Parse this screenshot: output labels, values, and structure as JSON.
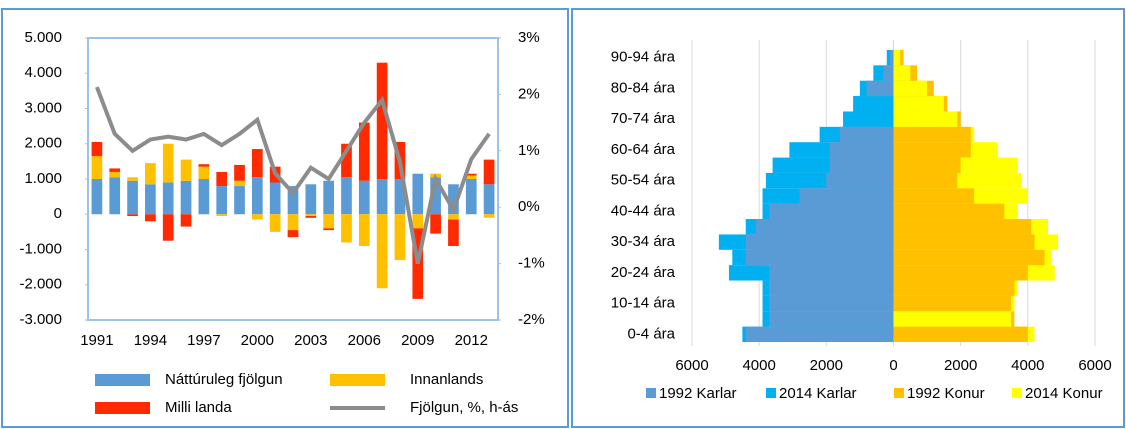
{
  "chart_data": [
    {
      "type": "bar",
      "stacked": true,
      "categories": [
        "1991",
        null,
        null,
        "1994",
        null,
        null,
        "1997",
        null,
        null,
        "2000",
        null,
        null,
        "2003",
        null,
        null,
        "2006",
        null,
        null,
        "2009",
        null,
        null,
        "2012",
        null
      ],
      "series": [
        {
          "name": "Náttúruleg fjölgun",
          "color": "#5b9bd5",
          "values": [
            1000,
            1050,
            950,
            850,
            900,
            950,
            1000,
            800,
            800,
            1050,
            900,
            800,
            850,
            950,
            1050,
            950,
            1000,
            1000,
            1150,
            1050,
            850,
            1000,
            850
          ]
        },
        {
          "name": "Innanlands",
          "color": "#ffc000",
          "values": [
            650,
            150,
            100,
            600,
            1100,
            600,
            350,
            -50,
            150,
            -150,
            -500,
            -450,
            -50,
            -400,
            -800,
            -900,
            -2100,
            -1300,
            -400,
            100,
            -150,
            100,
            -100
          ]
        },
        {
          "name": "Milli landa",
          "color": "#ff2a00",
          "values": [
            400,
            100,
            -50,
            -200,
            -750,
            -350,
            70,
            400,
            450,
            800,
            450,
            -200,
            -50,
            -50,
            950,
            1650,
            3300,
            1050,
            -2000,
            -550,
            -750,
            50,
            700
          ]
        },
        {
          "name": "Fjölgun, %, h-ás",
          "color": "#8c8c8c",
          "type": "line",
          "axis": "y2",
          "values": [
            2.13,
            1.3,
            1.0,
            1.2,
            1.25,
            1.2,
            1.3,
            1.1,
            1.3,
            1.55,
            0.6,
            0.25,
            0.7,
            0.5,
            1.0,
            1.5,
            1.9,
            0.8,
            -1.0,
            0.5,
            -0.05,
            0.85,
            1.3
          ]
        }
      ],
      "ylim": [
        -3000,
        5000
      ],
      "yticks": [
        {
          "value": -3000,
          "label": "-3.000"
        },
        {
          "value": -2000,
          "label": "-2.000"
        },
        {
          "value": -1000,
          "label": "-1.000"
        },
        0,
        {
          "value": 1000,
          "label": "1.000"
        },
        {
          "value": 2000,
          "label": "2.000"
        },
        {
          "value": 3000,
          "label": "3.000"
        },
        {
          "value": 4000,
          "label": "4.000"
        },
        {
          "value": 5000,
          "label": "5.000"
        }
      ],
      "y2lim": [
        -2,
        3
      ],
      "y2ticks": [
        {
          "value": -2,
          "label": "-2%"
        },
        {
          "value": -1,
          "label": "-1%"
        },
        {
          "value": 0,
          "label": "0%"
        },
        {
          "value": 1,
          "label": "1%"
        },
        {
          "value": 2,
          "label": "2%"
        },
        {
          "value": 3,
          "label": "3%"
        }
      ],
      "grid": false,
      "legend": "bottom"
    },
    {
      "type": "bar",
      "orientation": "horizontal",
      "overlap": true,
      "categories": [
        "0-4 ára",
        null,
        "10-14 ára",
        null,
        "20-24 ára",
        null,
        "30-34 ára",
        null,
        "40-44 ára",
        null,
        "50-54 ára",
        null,
        "60-64 ára",
        null,
        "70-74 ára",
        null,
        "80-84 ára",
        null,
        "90-94 ára"
      ],
      "series": [
        {
          "name": "1992 Karlar",
          "color": "#5b9bd5",
          "values": [
            -4400,
            -3700,
            -3700,
            -3700,
            -3700,
            -4400,
            -4400,
            -4100,
            -3700,
            -2800,
            -2000,
            -1900,
            -1900,
            -1600,
            -1500,
            -1200,
            -800,
            -300,
            -100
          ]
        },
        {
          "name": "2014 Karlar",
          "color": "#00b0f0",
          "values": [
            -4500,
            -3900,
            -3900,
            -3900,
            -4900,
            -4800,
            -5200,
            -4400,
            -3900,
            -3900,
            -3800,
            -3600,
            -3100,
            -2200,
            -1500,
            -1200,
            -1000,
            -600,
            -200
          ]
        },
        {
          "name": "1992 Konur",
          "color": "#ffc000",
          "values": [
            4000,
            3600,
            3500,
            3600,
            4000,
            4500,
            4200,
            4100,
            3300,
            2400,
            1900,
            2000,
            2300,
            2300,
            2000,
            1600,
            1200,
            700,
            300
          ]
        },
        {
          "name": "2014 Konur",
          "color": "#ffff00",
          "values": [
            4200,
            3500,
            3600,
            3700,
            4800,
            4700,
            4900,
            4600,
            3700,
            4000,
            3800,
            3700,
            3100,
            2400,
            1900,
            1500,
            1000,
            500,
            200
          ]
        }
      ],
      "xlim": [
        -6000,
        6000
      ],
      "xticks": [
        {
          "value": -6000,
          "label": "6000"
        },
        {
          "value": -4000,
          "label": "4000"
        },
        {
          "value": -2000,
          "label": "2000"
        },
        0,
        2000,
        4000,
        6000
      ],
      "grid": true,
      "legend": "bottom"
    }
  ]
}
